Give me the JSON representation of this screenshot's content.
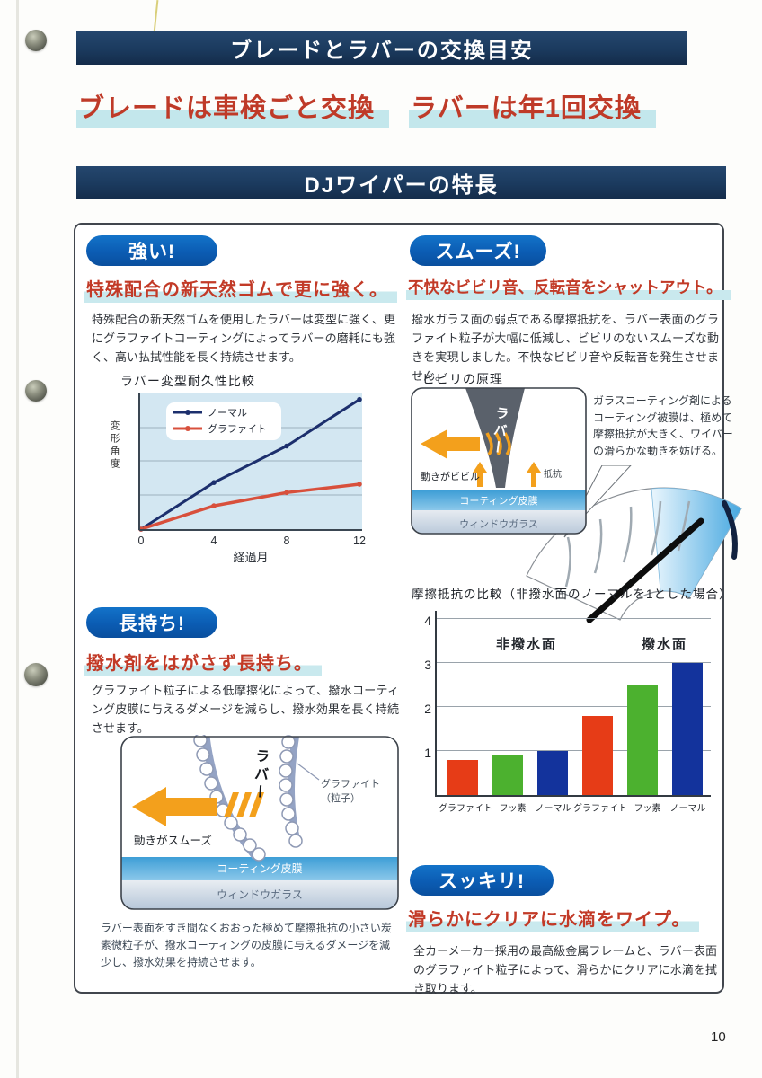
{
  "page": {
    "number": "10"
  },
  "banners": {
    "replacement_guide": "ブレードとラバーの交換目安",
    "features": "DJワイパーの特長"
  },
  "headlines": {
    "blade": "ブレードは車検ごと交換",
    "rubber": "ラバーは年1回交換"
  },
  "sections": {
    "strong": {
      "badge": "強い!",
      "headline": "特殊配合の新天然ゴムで更に強く。",
      "body": "特殊配合の新天然ゴムを使用したラバーは変型に強く、更にグラファイトコーティングによってラバーの磨耗にも強く、高い払拭性能を長く持続させます。"
    },
    "smooth": {
      "badge": "スムーズ!",
      "headline": "不快なビビリ音、反転音をシャットアウト。",
      "body": "撥水ガラス面の弱点である摩擦抵抗を、ラバー表面のグラファイト粒子が大幅に低減し、ビビリのないスムーズな動きを実現しました。不快なビビリ音や反転音を発生させません。"
    },
    "durable": {
      "badge": "長持ち!",
      "headline": "撥水剤をはがさず長持ち。",
      "body": "グラファイト粒子による低摩擦化によって、撥水コーティング皮膜に与えるダメージを減らし、撥水効果を長く持続させます。",
      "caption": "ラバー表面をすき間なくおおった極めて摩擦抵抗の小さい炭素微粒子が、撥水コーティングの皮膜に与えるダメージを減少し、撥水効果を持続させます。"
    },
    "clean": {
      "badge": "スッキリ!",
      "headline": "滑らかにクリアに水滴をワイプ。",
      "body": "全カーメーカー採用の最高級金属フレームと、ラバー表面のグラファイト粒子によって、滑らかにクリアに水滴を拭き取ります。"
    }
  },
  "bibiri_diagram": {
    "title": "ビビリの原理",
    "rubber_label": "ラバー",
    "motion_label": "動きがビビル",
    "resistance_label": "抵抗",
    "coating_label": "コーティング皮膜",
    "glass_label": "ウィンドウガラス",
    "note": "ガラスコーティング剤によるコーティング被膜は、極めて摩擦抵抗が大きく、ワイパーの滑らかな動きを妨げる。"
  },
  "durable_diagram": {
    "rubber_label": "ラバー",
    "particle_label_line1": "グラファイト",
    "particle_label_line2": "（粒子）",
    "motion_label": "動きがスムーズ",
    "coating_label": "コーティング皮膜",
    "glass_label": "ウィンドウガラス"
  },
  "colors": {
    "banner_navy": "#1b3a5e",
    "headline_red": "#bf3a28",
    "badge_blue": "#0b5cb3",
    "highlight_cyan": "#c3e7ec",
    "orange_arrow": "#f3a01c"
  },
  "chart_data": [
    {
      "type": "line",
      "title": "ラバー変型耐久性比較",
      "xlabel": "経過月",
      "ylabel": "変形角度",
      "x": [
        0,
        4,
        8,
        12
      ],
      "series": [
        {
          "name": "ノーマル",
          "color": "#1c2f6d",
          "values": [
            0,
            1.4,
            2.5,
            3.9
          ]
        },
        {
          "name": "グラファイト",
          "color": "#d8503c",
          "values": [
            0,
            0.7,
            1.1,
            1.35
          ]
        }
      ],
      "ylim": [
        0,
        4
      ],
      "grid": true,
      "legend_position": "top-left",
      "plot_background": "#d3e7f2"
    },
    {
      "type": "bar",
      "title": "摩擦抵抗の比較（非撥水面のノーマルを1とした場合）",
      "categories": [
        "グラファイト",
        "フッ素",
        "ノーマル",
        "グラファイト",
        "フッ素",
        "ノーマル"
      ],
      "values": [
        0.8,
        0.9,
        1.0,
        1.8,
        2.5,
        3.0
      ],
      "colors": [
        "#e63c17",
        "#4cb12f",
        "#13339c",
        "#e63c17",
        "#4cb12f",
        "#13339c"
      ],
      "group_labels": [
        "非撥水面",
        "撥水面"
      ],
      "ylim": [
        0,
        4
      ],
      "yticks": [
        1,
        2,
        3,
        4
      ],
      "grid": true
    }
  ]
}
